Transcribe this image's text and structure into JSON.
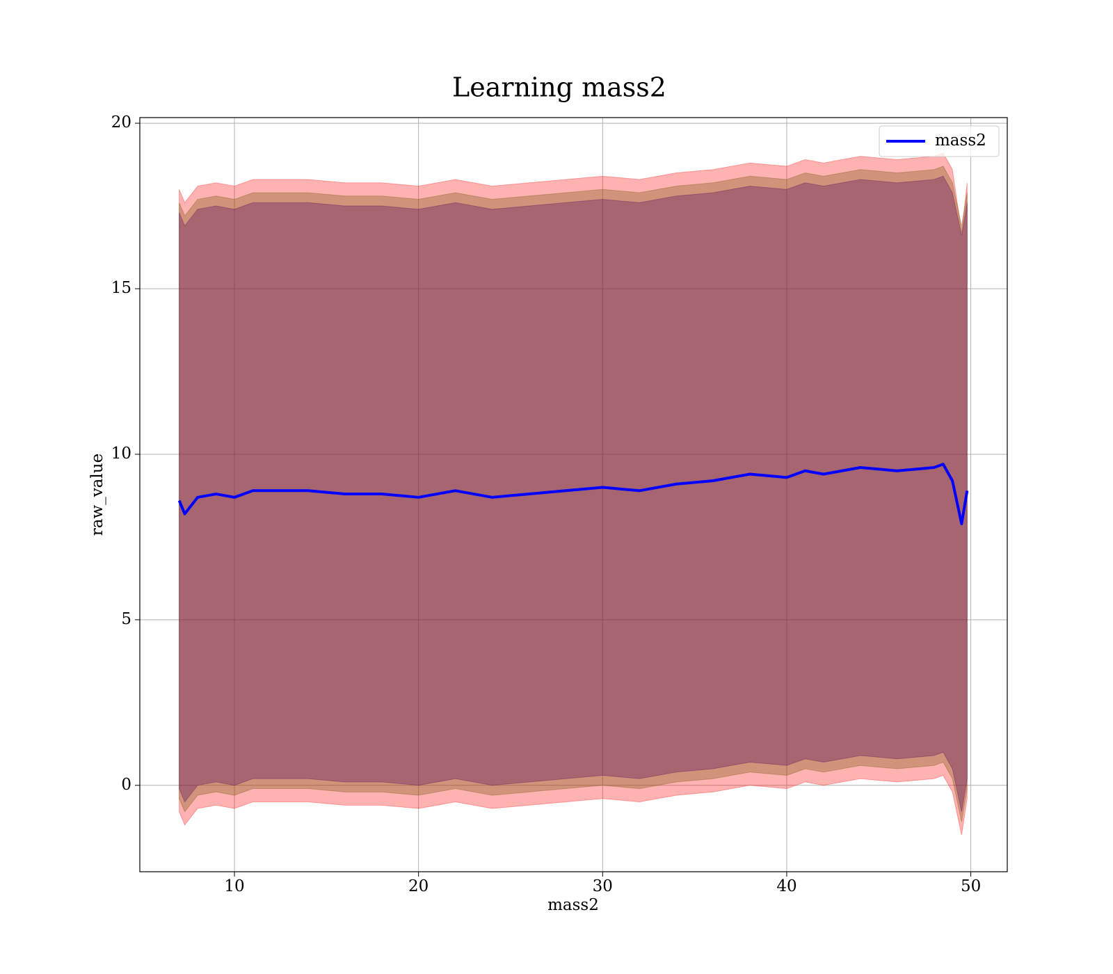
{
  "chart_data": {
    "type": "line",
    "title": "Learning mass2",
    "xlabel": "mass2",
    "ylabel": "raw_value",
    "x": [
      7,
      7.3,
      8,
      9,
      10,
      11,
      12,
      14,
      16,
      18,
      20,
      22,
      24,
      26,
      28,
      30,
      32,
      34,
      36,
      38,
      40,
      41,
      42,
      43,
      44,
      46,
      48,
      48.5,
      49,
      49.5,
      49.8
    ],
    "series": [
      {
        "name": "mass2",
        "color": "#0000ff",
        "values": [
          8.6,
          8.2,
          8.7,
          8.8,
          8.7,
          8.9,
          8.9,
          8.9,
          8.8,
          8.8,
          8.7,
          8.9,
          8.7,
          8.8,
          8.9,
          9.0,
          8.9,
          9.1,
          9.2,
          9.4,
          9.3,
          9.5,
          9.4,
          9.5,
          9.6,
          9.5,
          9.6,
          9.7,
          9.2,
          7.9,
          8.9
        ]
      }
    ],
    "bands": [
      {
        "color": "#ff0000",
        "opacity": 0.3,
        "upper": [
          18.0,
          17.6,
          18.1,
          18.2,
          18.1,
          18.3,
          18.3,
          18.3,
          18.2,
          18.2,
          18.1,
          18.3,
          18.1,
          18.2,
          18.3,
          18.4,
          18.3,
          18.5,
          18.6,
          18.8,
          18.7,
          18.9,
          18.8,
          18.9,
          19.0,
          18.9,
          19.0,
          19.1,
          18.6,
          16.7,
          18.2
        ],
        "lower": [
          -0.8,
          -1.2,
          -0.7,
          -0.6,
          -0.7,
          -0.5,
          -0.5,
          -0.5,
          -0.6,
          -0.6,
          -0.7,
          -0.5,
          -0.7,
          -0.6,
          -0.5,
          -0.4,
          -0.5,
          -0.3,
          -0.2,
          0.0,
          -0.1,
          0.1,
          0.0,
          0.1,
          0.2,
          0.1,
          0.2,
          0.3,
          -0.2,
          -1.5,
          -0.4
        ]
      },
      {
        "color": "#7a5a10",
        "opacity": 0.35,
        "upper": [
          17.6,
          17.2,
          17.7,
          17.8,
          17.7,
          17.9,
          17.9,
          17.9,
          17.8,
          17.8,
          17.7,
          17.9,
          17.7,
          17.8,
          17.9,
          18.0,
          17.9,
          18.1,
          18.2,
          18.4,
          18.3,
          18.5,
          18.4,
          18.5,
          18.6,
          18.5,
          18.6,
          18.7,
          18.2,
          16.9,
          17.9
        ],
        "lower": [
          -0.4,
          -0.8,
          -0.3,
          -0.2,
          -0.3,
          -0.1,
          -0.1,
          -0.1,
          -0.2,
          -0.2,
          -0.3,
          -0.1,
          -0.3,
          -0.2,
          -0.1,
          0.0,
          -0.1,
          0.1,
          0.2,
          0.4,
          0.3,
          0.5,
          0.4,
          0.5,
          0.6,
          0.5,
          0.6,
          0.7,
          0.2,
          -1.1,
          -0.1
        ]
      },
      {
        "color": "#5a1060",
        "opacity": 0.35,
        "upper": [
          17.3,
          16.9,
          17.4,
          17.5,
          17.4,
          17.6,
          17.6,
          17.6,
          17.5,
          17.5,
          17.4,
          17.6,
          17.4,
          17.5,
          17.6,
          17.7,
          17.6,
          17.8,
          17.9,
          18.1,
          18.0,
          18.2,
          18.1,
          18.2,
          18.3,
          18.2,
          18.3,
          18.4,
          17.9,
          16.6,
          17.6
        ],
        "lower": [
          -0.1,
          -0.5,
          0.0,
          0.1,
          0.0,
          0.2,
          0.2,
          0.2,
          0.1,
          0.1,
          0.0,
          0.2,
          0.0,
          0.1,
          0.2,
          0.3,
          0.2,
          0.4,
          0.5,
          0.7,
          0.6,
          0.8,
          0.7,
          0.8,
          0.9,
          0.8,
          0.9,
          1.0,
          0.5,
          -0.8,
          0.2
        ]
      }
    ],
    "xlim": [
      4.86,
      51.98
    ],
    "xticks": [
      10,
      20,
      30,
      40,
      50
    ],
    "ylim": [
      -2.61,
      20.17
    ],
    "yticks": [
      0,
      5,
      10,
      15,
      20
    ],
    "grid": true,
    "legend": "upper right"
  }
}
